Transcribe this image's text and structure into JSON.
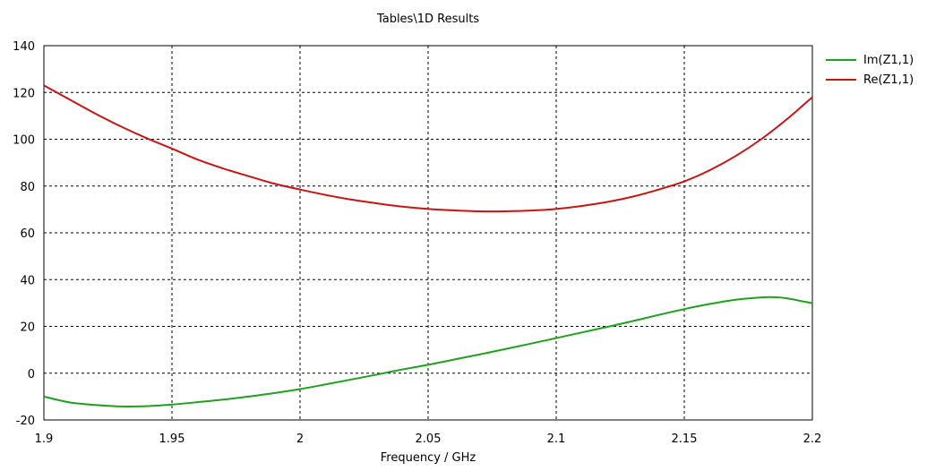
{
  "chart_data": {
    "type": "line",
    "title": "Tables\\1D Results",
    "xlabel": "Frequency / GHz",
    "ylabel": "",
    "xlim": [
      1.9,
      2.2
    ],
    "ylim": [
      -20,
      140
    ],
    "xticks": [
      "1.9",
      "1.95",
      "2",
      "2.05",
      "2.1",
      "2.15",
      "2.2"
    ],
    "yticks": [
      "-20",
      "0",
      "20",
      "40",
      "60",
      "80",
      "100",
      "120",
      "140"
    ],
    "grid": true,
    "legend_position": "right",
    "series": [
      {
        "name": "Im(Z1,1)",
        "color": "#1fa01f",
        "x": [
          1.9,
          1.91,
          1.92,
          1.93,
          1.94,
          1.95,
          1.96,
          1.97,
          1.98,
          1.99,
          2.0,
          2.01,
          2.02,
          2.03,
          2.04,
          2.05,
          2.06,
          2.07,
          2.08,
          2.09,
          2.1,
          2.11,
          2.12,
          2.13,
          2.14,
          2.15,
          2.16,
          2.17,
          2.18,
          2.185,
          2.19,
          2.2
        ],
        "values": [
          -10,
          -12.5,
          -13.6,
          -14.2,
          -14.1,
          -13.4,
          -12.4,
          -11.3,
          -10,
          -8.5,
          -6.8,
          -4.8,
          -2.7,
          -0.6,
          1.6,
          3.6,
          5.8,
          8,
          10.3,
          12.6,
          15,
          17.4,
          19.8,
          22.3,
          24.9,
          27.4,
          29.6,
          31.4,
          32.4,
          32.5,
          32,
          29.9
        ]
      },
      {
        "name": "Re(Z1,1)",
        "color": "#c81414",
        "x": [
          1.9,
          1.91,
          1.92,
          1.93,
          1.94,
          1.95,
          1.96,
          1.97,
          1.98,
          1.99,
          2.0,
          2.01,
          2.02,
          2.03,
          2.04,
          2.05,
          2.06,
          2.07,
          2.08,
          2.09,
          2.1,
          2.11,
          2.12,
          2.13,
          2.14,
          2.15,
          2.16,
          2.17,
          2.18,
          2.19,
          2.2
        ],
        "values": [
          123,
          117,
          111,
          105.5,
          100.5,
          96,
          91.3,
          87.5,
          84.2,
          81,
          78.5,
          76.2,
          74.2,
          72.6,
          71.2,
          70.2,
          69.6,
          69.2,
          69.2,
          69.5,
          70.2,
          71.5,
          73.2,
          75.5,
          78.5,
          82,
          86.8,
          92.8,
          100,
          108.5,
          118
        ]
      }
    ]
  }
}
